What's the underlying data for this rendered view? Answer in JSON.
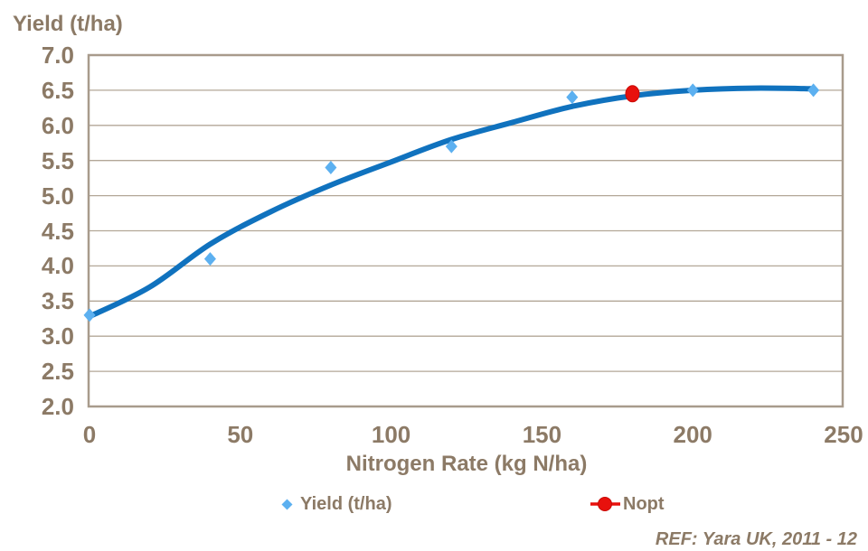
{
  "chart": {
    "colors": {
      "text_brown": "#8C7A66",
      "grid_line": "#B3A797",
      "plot_border": "#A89B8C",
      "curve_blue": "#1072BE",
      "marker_blue": "#5CB0F0",
      "nopt_red": "#E8110D",
      "nopt_red_dark": "#C90A06",
      "background": "#FFFFFF"
    }
  },
  "chart_data": {
    "type": "scatter",
    "title": "Yield (t/ha)",
    "xlabel": "Nitrogen Rate (kg N/ha)",
    "ylabel": "Yield (t/ha)",
    "xlim": [
      0,
      250
    ],
    "ylim": [
      2.0,
      7.0
    ],
    "xticks": [
      "0",
      "50",
      "100",
      "150",
      "200",
      "250"
    ],
    "yticks": [
      "7.0",
      "6.5",
      "6.0",
      "5.5",
      "5.0",
      "4.5",
      "4.0",
      "3.5",
      "3.0",
      "2.5",
      "2.0"
    ],
    "grid": "horizontal",
    "legend_position": "bottom",
    "annotation": "REF: Yara UK, 2011 - 12",
    "series": [
      {
        "name": "Yield (t/ha)",
        "type": "scatter",
        "marker": "diamond",
        "points": [
          [
            0,
            3.3
          ],
          [
            40,
            4.1
          ],
          [
            80,
            5.4
          ],
          [
            120,
            5.7
          ],
          [
            160,
            6.4
          ],
          [
            200,
            6.5
          ],
          [
            240,
            6.5
          ]
        ]
      },
      {
        "name": "",
        "type": "line",
        "points": [
          [
            0,
            3.28
          ],
          [
            20,
            3.7
          ],
          [
            40,
            4.31
          ],
          [
            60,
            4.77
          ],
          [
            80,
            5.15
          ],
          [
            100,
            5.48
          ],
          [
            120,
            5.8
          ],
          [
            140,
            6.04
          ],
          [
            160,
            6.27
          ],
          [
            180,
            6.42
          ],
          [
            200,
            6.5
          ],
          [
            220,
            6.53
          ],
          [
            240,
            6.52
          ]
        ]
      },
      {
        "name": "Nopt",
        "type": "scatter",
        "marker": "circle",
        "points": [
          [
            180,
            6.45
          ]
        ]
      }
    ]
  }
}
